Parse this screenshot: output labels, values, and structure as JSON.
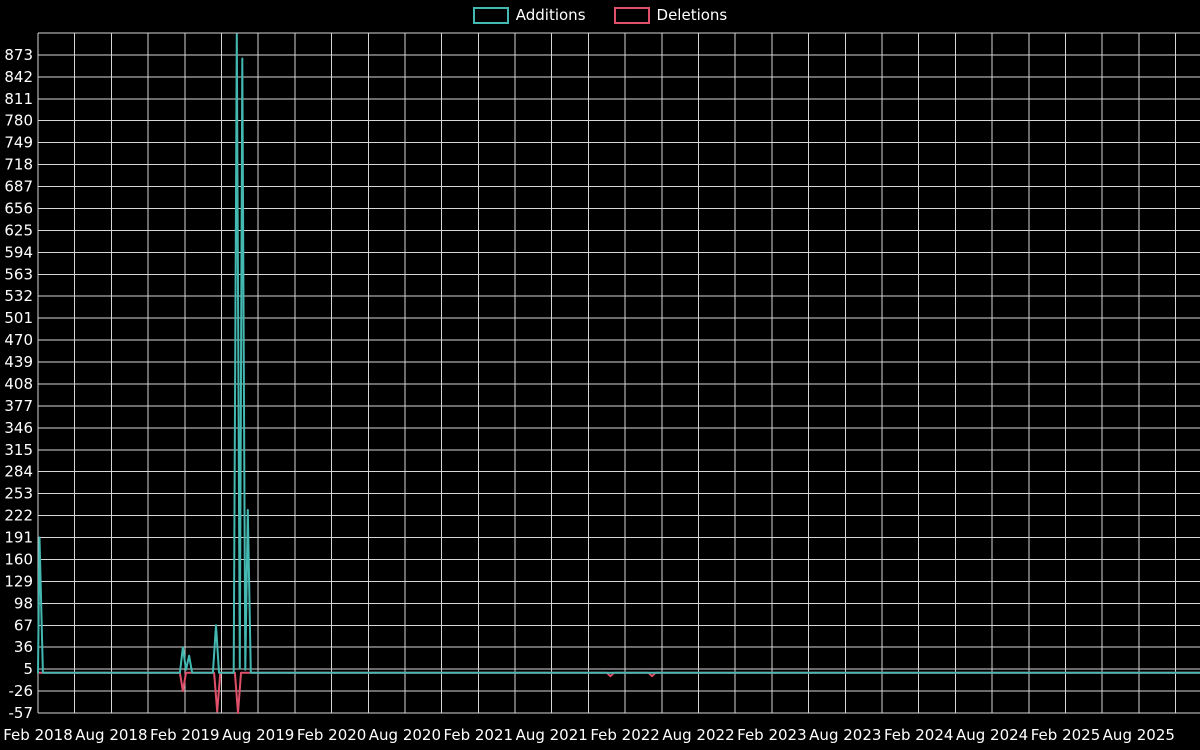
{
  "page": {
    "background": "#000000",
    "text_color": "#ffffff"
  },
  "chart_data": {
    "type": "line",
    "title": "",
    "legend_position": "top-center",
    "grid": true,
    "x_axis": {
      "unit": "months",
      "tick_labels": [
        "Feb 2018",
        "Aug 2018",
        "Feb 2019",
        "Aug 2019",
        "Feb 2020",
        "Aug 2020",
        "Feb 2021",
        "Aug 2021",
        "Feb 2022",
        "Aug 2022",
        "Feb 2023",
        "Aug 2023",
        "Feb 2024",
        "Aug 2024",
        "Feb 2025",
        "Aug 2025"
      ],
      "label_every_months": 6,
      "gridline_every_months": 3,
      "total_months": 95
    },
    "y_axis": {
      "tick_labels": [
        873,
        842,
        811,
        780,
        749,
        718,
        687,
        656,
        625,
        594,
        563,
        532,
        501,
        470,
        439,
        408,
        377,
        346,
        315,
        284,
        253,
        222,
        191,
        160,
        129,
        98,
        67,
        36,
        5,
        -26,
        -57
      ],
      "tick_step": 31,
      "top_gridline_value": 904,
      "min_value": -57
    },
    "series": [
      {
        "name": "Additions",
        "color": "#44b9b1",
        "points": [
          [
            0,
            0
          ],
          [
            0.12,
            191
          ],
          [
            0.4,
            0
          ],
          [
            11.6,
            0
          ],
          [
            11.85,
            36
          ],
          [
            12.1,
            4
          ],
          [
            12.35,
            24
          ],
          [
            12.6,
            0
          ],
          [
            14.3,
            0
          ],
          [
            14.55,
            67
          ],
          [
            14.8,
            0
          ],
          [
            16.0,
            0
          ],
          [
            16.25,
            902
          ],
          [
            16.5,
            6
          ],
          [
            16.7,
            868
          ],
          [
            16.95,
            4
          ],
          [
            17.15,
            230
          ],
          [
            17.4,
            0
          ],
          [
            95,
            0
          ]
        ]
      },
      {
        "name": "Deletions",
        "color": "#e0506a",
        "points": [
          [
            0,
            0
          ],
          [
            11.6,
            0
          ],
          [
            11.85,
            -26
          ],
          [
            12.1,
            0
          ],
          [
            14.4,
            0
          ],
          [
            14.65,
            -55
          ],
          [
            14.9,
            0
          ],
          [
            16.1,
            0
          ],
          [
            16.35,
            -57
          ],
          [
            16.6,
            0
          ],
          [
            46.5,
            0
          ],
          [
            46.8,
            -5
          ],
          [
            47.1,
            0
          ],
          [
            49.9,
            0
          ],
          [
            50.2,
            -5
          ],
          [
            50.5,
            0
          ],
          [
            95,
            0
          ]
        ]
      }
    ]
  }
}
